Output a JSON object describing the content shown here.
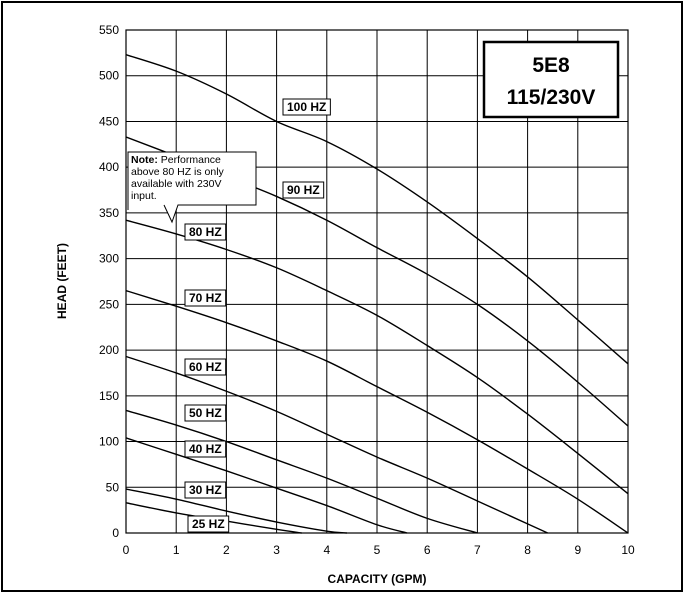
{
  "chart_data": {
    "type": "line",
    "title_lines": [
      "5E8",
      "115/230V"
    ],
    "xlabel": "CAPACITY (GPM)",
    "ylabel": "HEAD (FEET)",
    "xlim": [
      0,
      10
    ],
    "ylim": [
      0,
      550
    ],
    "x_ticks": [
      "0",
      "1",
      "2",
      "3",
      "4",
      "5",
      "6",
      "7",
      "8",
      "9",
      "10"
    ],
    "y_ticks": [
      "0",
      "50",
      "100",
      "150",
      "200",
      "250",
      "300",
      "350",
      "400",
      "450",
      "500",
      "550"
    ],
    "grid": true,
    "note": {
      "bold": "Note:",
      "lines": [
        " Performance",
        "above 80 HZ is only",
        "available with 230V",
        "input."
      ]
    },
    "series": [
      {
        "name": "100 HZ",
        "points": [
          [
            0,
            523
          ],
          [
            1,
            505
          ],
          [
            2,
            480
          ],
          [
            3,
            450
          ],
          [
            4,
            428
          ],
          [
            5,
            398
          ],
          [
            6,
            362
          ],
          [
            7,
            322
          ],
          [
            8,
            280
          ],
          [
            9,
            233
          ],
          [
            10,
            185
          ]
        ]
      },
      {
        "name": "90 HZ",
        "points": [
          [
            0,
            433
          ],
          [
            1,
            412
          ],
          [
            2,
            390
          ],
          [
            3,
            368
          ],
          [
            4,
            342
          ],
          [
            5,
            312
          ],
          [
            6,
            283
          ],
          [
            7,
            250
          ],
          [
            8,
            210
          ],
          [
            9,
            165
          ],
          [
            10,
            117
          ]
        ]
      },
      {
        "name": "80 HZ",
        "points": [
          [
            0,
            342
          ],
          [
            1,
            327
          ],
          [
            2,
            310
          ],
          [
            3,
            290
          ],
          [
            4,
            265
          ],
          [
            5,
            238
          ],
          [
            6,
            205
          ],
          [
            7,
            170
          ],
          [
            8,
            130
          ],
          [
            9,
            87
          ],
          [
            10,
            43
          ]
        ]
      },
      {
        "name": "70 HZ",
        "points": [
          [
            0,
            265
          ],
          [
            1,
            248
          ],
          [
            2,
            230
          ],
          [
            3,
            210
          ],
          [
            4,
            188
          ],
          [
            5,
            160
          ],
          [
            6,
            132
          ],
          [
            7,
            102
          ],
          [
            8,
            70
          ],
          [
            9,
            37
          ],
          [
            10,
            0
          ]
        ]
      },
      {
        "name": "60 HZ",
        "points": [
          [
            0,
            193
          ],
          [
            1,
            175
          ],
          [
            2,
            155
          ],
          [
            3,
            133
          ],
          [
            4,
            108
          ],
          [
            5,
            83
          ],
          [
            6,
            60
          ],
          [
            7,
            35
          ],
          [
            8,
            10
          ],
          [
            8.4,
            0
          ]
        ]
      },
      {
        "name": "50 HZ",
        "points": [
          [
            0,
            134
          ],
          [
            1,
            118
          ],
          [
            2,
            100
          ],
          [
            3,
            80
          ],
          [
            4,
            60
          ],
          [
            5,
            38
          ],
          [
            6,
            16
          ],
          [
            7,
            0
          ]
        ]
      },
      {
        "name": "40 HZ",
        "points": [
          [
            0,
            104
          ],
          [
            1,
            86
          ],
          [
            2,
            68
          ],
          [
            3,
            49
          ],
          [
            4,
            30
          ],
          [
            5,
            9
          ],
          [
            5.6,
            0
          ]
        ]
      },
      {
        "name": "30 HZ",
        "points": [
          [
            0,
            48
          ],
          [
            1,
            37
          ],
          [
            2,
            24
          ],
          [
            3,
            12
          ],
          [
            4,
            2
          ],
          [
            4.4,
            0
          ]
        ]
      },
      {
        "name": "25 HZ",
        "points": [
          [
            0,
            33
          ],
          [
            1,
            22
          ],
          [
            2,
            13
          ],
          [
            3,
            4
          ],
          [
            3.5,
            0
          ]
        ]
      }
    ]
  }
}
